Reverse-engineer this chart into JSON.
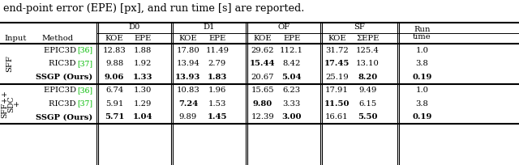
{
  "title_text": "end-point error (EPE) [px], and run time [s] are reported.",
  "sections": [
    {
      "input_label": "SFF",
      "rows": [
        {
          "method_base": "EPIC3D ",
          "method_ref": "[36]",
          "values": [
            "12.83",
            "1.88",
            "17.80",
            "11.49",
            "29.62",
            "112.1",
            "31.72",
            "125.4",
            "1.0"
          ],
          "bold": [
            false,
            false,
            false,
            false,
            false,
            false,
            false,
            false,
            false
          ]
        },
        {
          "method_base": "RIC3D ",
          "method_ref": "[37]",
          "values": [
            "9.88",
            "1.92",
            "13.94",
            "2.79",
            "15.44",
            "8.42",
            "17.45",
            "13.10",
            "3.8"
          ],
          "bold": [
            false,
            false,
            false,
            false,
            true,
            false,
            true,
            false,
            false
          ]
        },
        {
          "method_base": "SSGP (Ours)",
          "method_ref": null,
          "values": [
            "9.06",
            "1.33",
            "13.93",
            "1.83",
            "20.67",
            "5.04",
            "25.19",
            "8.20",
            "0.19"
          ],
          "bold": [
            true,
            true,
            true,
            true,
            false,
            true,
            false,
            true,
            true
          ]
        }
      ]
    },
    {
      "input_label": "SFF++\n+ SDC",
      "rows": [
        {
          "method_base": "EPIC3D ",
          "method_ref": "[36]",
          "values": [
            "6.74",
            "1.30",
            "10.83",
            "1.96",
            "15.65",
            "6.23",
            "17.91",
            "9.49",
            "1.0"
          ],
          "bold": [
            false,
            false,
            false,
            false,
            false,
            false,
            false,
            false,
            false
          ]
        },
        {
          "method_base": "RIC3D ",
          "method_ref": "[37]",
          "values": [
            "5.91",
            "1.29",
            "7.24",
            "1.53",
            "9.80",
            "3.33",
            "11.50",
            "6.15",
            "3.8"
          ],
          "bold": [
            false,
            false,
            true,
            false,
            true,
            false,
            true,
            false,
            false
          ]
        },
        {
          "method_base": "SSGP (Ours)",
          "method_ref": null,
          "values": [
            "5.71",
            "1.04",
            "9.89",
            "1.45",
            "12.39",
            "3.00",
            "16.61",
            "5.50",
            "0.19"
          ],
          "bold": [
            true,
            true,
            false,
            true,
            false,
            true,
            false,
            true,
            true
          ]
        }
      ]
    }
  ],
  "bg_color": "#ffffff",
  "text_color": "#000000",
  "ref_color": "#00bb00",
  "line_color": "#000000",
  "font_size": 7.2,
  "title_font_size": 9.2
}
